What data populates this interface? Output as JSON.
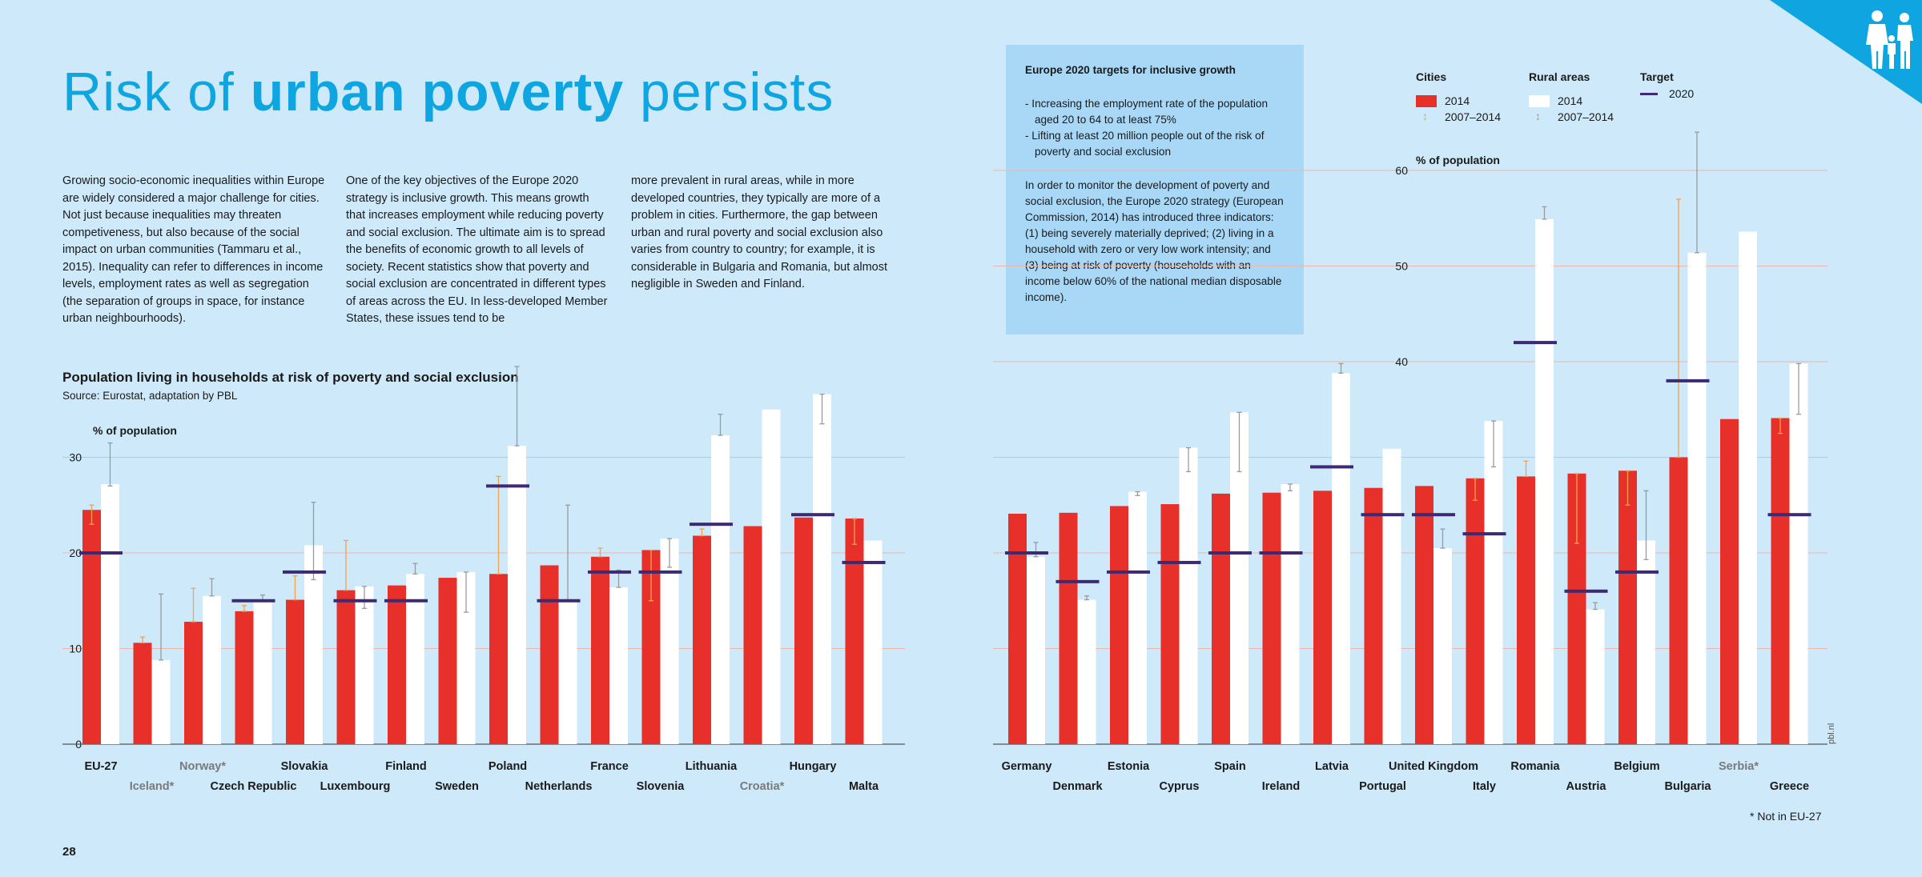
{
  "page": {
    "title_prefix": "Risk of ",
    "title_bold": "urban poverty",
    "title_suffix": " persists",
    "col1": "Growing socio-economic inequalities within Europe are widely considered a major challenge for cities. Not just because inequalities may threaten competiveness, but also because of the social impact on urban communities (Tammaru et al., 2015). Inequality can refer to differences in income levels, employment rates as well as segregation (the separation of groups in space, for instance urban neighbourhoods).",
    "col2": "One of the key objectives of the Europe 2020 strategy is inclusive growth. This means growth that increases employment while reducing poverty and social exclusion. The ultimate aim is to spread the benefits of economic growth to all levels of society. Recent statistics show that poverty and social exclusion are concentrated in different types of areas across the EU. In less-developed Member States, these issues tend to be",
    "col3": "more prevalent in rural areas, while in more developed countries, they typically are more of a problem in cities. Furthermore, the gap between urban and rural poverty and social exclusion also varies from country to country; for example, it is considerable in Bulgaria and Romania, but almost negligible in Sweden and Finland.",
    "infobox_heading": "Europe 2020 targets for inclusive growth",
    "infobox_items": [
      "- Increasing the employment rate of the population aged 20 to 64 to at least 75%",
      "- Lifting at least 20 million people out of the risk of poverty and social exclusion"
    ],
    "infobox_paragraph": "In order to monitor the development of poverty and social exclusion, the Europe 2020 strategy (European Commission, 2014) has introduced three indicators: (1) being severely materially deprived; (2) living in a household with zero or very low work intensity; and (3) being at risk of poverty (households with an income below 60% of the national median disposable income).",
    "page_number": "28",
    "footnote": "* Not in EU-27",
    "credit": "pbl.nl"
  },
  "legend": {
    "cities": "Cities",
    "rural": "Rural areas",
    "target": "Target",
    "y2014": "2014",
    "range": "2007–2014",
    "y2020": "2020"
  },
  "colors": {
    "cities": "#e8302a",
    "rural": "#ffffff",
    "target": "#3d2a72",
    "accent": "#0ea5e0",
    "cities_range": "#f2a24c",
    "rural_range": "#9a9a9a",
    "grid": "#e9b7ae"
  },
  "chart_data": {
    "type": "bar",
    "title": "Population living in households at risk of poverty and social exclusion",
    "source": "Source: Eurostat, adaptation by PBL",
    "ylabel": "% of population",
    "series": [
      {
        "name": "Cities 2014"
      },
      {
        "name": "Rural areas 2014"
      },
      {
        "name": "Target 2020"
      }
    ],
    "panels": [
      {
        "ylim": [
          0,
          30
        ],
        "yticks": [
          "0",
          "10",
          "20",
          "30"
        ],
        "categories": [
          {
            "name": "EU-27",
            "city": 24.5,
            "city_range": [
              23,
              25
            ],
            "rural": 27.2,
            "rural_range": [
              27,
              31.5
            ],
            "target": 20,
            "row": 1
          },
          {
            "name": "Iceland*",
            "city": 10.6,
            "city_range": [
              10.6,
              11.2
            ],
            "rural": 8.8,
            "rural_range": [
              8.8,
              15.7
            ],
            "target": null,
            "row": 2,
            "non_eu": true
          },
          {
            "name": "Norway*",
            "city": 12.8,
            "city_range": [
              12.8,
              16.3
            ],
            "rural": 15.5,
            "rural_range": [
              15.5,
              17.3
            ],
            "target": null,
            "row": 1,
            "non_eu": true
          },
          {
            "name": "Czech Republic",
            "city": 13.9,
            "city_range": [
              13.9,
              14.5
            ],
            "rural": 15.0,
            "rural_range": [
              15,
              15.6
            ],
            "target": 15,
            "row": 2
          },
          {
            "name": "Slovakia",
            "city": 15.1,
            "city_range": [
              15.1,
              17.6
            ],
            "rural": 20.8,
            "rural_range": [
              17.2,
              25.3
            ],
            "target": 18,
            "row": 1
          },
          {
            "name": "Luxembourg",
            "city": 16.1,
            "city_range": [
              16.1,
              21.3
            ],
            "rural": 16.5,
            "rural_range": [
              14.2,
              16.5
            ],
            "target": 15,
            "row": 2
          },
          {
            "name": "Finland",
            "city": 16.6,
            "city_range": [
              16.6,
              16.6
            ],
            "rural": 17.8,
            "rural_range": [
              17.8,
              18.9
            ],
            "target": 15,
            "row": 1
          },
          {
            "name": "Sweden",
            "city": 17.4,
            "city_range": [
              17.4,
              17.4
            ],
            "rural": 18.0,
            "rural_range": [
              13.8,
              18
            ],
            "target": null,
            "row": 2
          },
          {
            "name": "Poland",
            "city": 17.8,
            "city_range": [
              17.8,
              28
            ],
            "rural": 31.2,
            "rural_range": [
              31.2,
              39.5
            ],
            "target": 27,
            "row": 1
          },
          {
            "name": "Netherlands",
            "city": 18.7,
            "city_range": [
              18.7,
              18.7
            ],
            "rural": 15.1,
            "rural_range": [
              15.1,
              25
            ],
            "target": 15,
            "row": 2
          },
          {
            "name": "France",
            "city": 19.6,
            "city_range": [
              19.6,
              20.5
            ],
            "rural": 16.4,
            "rural_range": [
              16.4,
              18.2
            ],
            "target": 18,
            "row": 1
          },
          {
            "name": "Slovenia",
            "city": 20.3,
            "city_range": [
              15,
              20.3
            ],
            "rural": 21.5,
            "rural_range": [
              18.5,
              21.5
            ],
            "target": 18,
            "row": 2
          },
          {
            "name": "Lithuania",
            "city": 21.8,
            "city_range": [
              21.8,
              22.5
            ],
            "rural": 32.3,
            "rural_range": [
              32.3,
              34.5
            ],
            "target": 23,
            "row": 1
          },
          {
            "name": "Croatia*",
            "city": 22.8,
            "city_range": [
              22.8,
              22.8
            ],
            "rural": 35.0,
            "rural_range": [
              35,
              35
            ],
            "target": null,
            "row": 2,
            "non_eu": true
          },
          {
            "name": "Hungary",
            "city": 23.7,
            "city_range": [
              23.7,
              23.7
            ],
            "rural": 36.6,
            "rural_range": [
              33.5,
              36.6
            ],
            "target": 24,
            "row": 1
          },
          {
            "name": "Malta",
            "city": 23.6,
            "city_range": [
              20.9,
              23.6
            ],
            "rural": 21.3,
            "rural_range": [
              21.3,
              21.3
            ],
            "target": 19,
            "row": 2
          }
        ]
      },
      {
        "ylim": [
          0,
          60
        ],
        "yticks": [
          "40",
          "50",
          "60"
        ],
        "categories": [
          {
            "name": "Germany",
            "city": 24.1,
            "city_range": [
              24.1,
              24.1
            ],
            "rural": 19.6,
            "rural_range": [
              19.6,
              21.1
            ],
            "target": 20,
            "row": 1
          },
          {
            "name": "Denmark",
            "city": 24.2,
            "city_range": [
              24.2,
              24.2
            ],
            "rural": 15.1,
            "rural_range": [
              15.1,
              15.5
            ],
            "target": 17,
            "row": 2
          },
          {
            "name": "Estonia",
            "city": 24.9,
            "city_range": [
              24.9,
              24.9
            ],
            "rural": 26.4,
            "rural_range": [
              26,
              26.4
            ],
            "target": 18,
            "row": 1
          },
          {
            "name": "Cyprus",
            "city": 25.1,
            "city_range": [
              25.1,
              25.4
            ],
            "rural": 31.0,
            "rural_range": [
              28.5,
              31
            ],
            "target": 19,
            "row": 2
          },
          {
            "name": "Spain",
            "city": 26.2,
            "city_range": [
              26.2,
              26.2
            ],
            "rural": 34.7,
            "rural_range": [
              28.5,
              34.7
            ],
            "target": 20,
            "row": 1
          },
          {
            "name": "Ireland",
            "city": 26.3,
            "city_range": [
              26.3,
              26.3
            ],
            "rural": 27.2,
            "rural_range": [
              26.5,
              27.2
            ],
            "target": 20,
            "row": 2
          },
          {
            "name": "Latvia",
            "city": 26.5,
            "city_range": [
              26.5,
              26.5
            ],
            "rural": 38.8,
            "rural_range": [
              38.8,
              39.8
            ],
            "target": 29,
            "row": 1
          },
          {
            "name": "Portugal",
            "city": 26.8,
            "city_range": [
              26.8,
              26.8
            ],
            "rural": 30.9,
            "rural_range": [
              30.9,
              30.9
            ],
            "target": 24,
            "row": 2
          },
          {
            "name": "United Kingdom",
            "city": 27.0,
            "city_range": [
              27,
              27
            ],
            "rural": 20.5,
            "rural_range": [
              20.5,
              22.5
            ],
            "target": 24,
            "row": 1
          },
          {
            "name": "Italy",
            "city": 27.8,
            "city_range": [
              25.5,
              27.8
            ],
            "rural": 33.8,
            "rural_range": [
              29,
              33.8
            ],
            "target": 22,
            "row": 2
          },
          {
            "name": "Romania",
            "city": 28.0,
            "city_range": [
              28,
              29.6
            ],
            "rural": 54.9,
            "rural_range": [
              54.9,
              56.2
            ],
            "target": 42,
            "row": 1
          },
          {
            "name": "Austria",
            "city": 28.3,
            "city_range": [
              21,
              28.3
            ],
            "rural": 14.1,
            "rural_range": [
              14.1,
              14.8
            ],
            "target": 16,
            "row": 2
          },
          {
            "name": "Belgium",
            "city": 28.6,
            "city_range": [
              25,
              28.6
            ],
            "rural": 21.3,
            "rural_range": [
              19.3,
              26.5
            ],
            "target": 18,
            "row": 1
          },
          {
            "name": "Bulgaria",
            "city": 30.0,
            "city_range": [
              30,
              57
            ],
            "rural": 51.4,
            "rural_range": [
              51.4,
              64
            ],
            "target": 38,
            "row": 2
          },
          {
            "name": "Serbia*",
            "city": 34.0,
            "city_range": [
              34,
              34
            ],
            "rural": 53.6,
            "rural_range": [
              53.6,
              53.6
            ],
            "target": null,
            "row": 1,
            "non_eu": true
          },
          {
            "name": "Greece",
            "city": 34.1,
            "city_range": [
              32.5,
              34.1
            ],
            "rural": 39.8,
            "rural_range": [
              34.5,
              39.8
            ],
            "target": 24,
            "row": 2
          }
        ]
      }
    ]
  }
}
